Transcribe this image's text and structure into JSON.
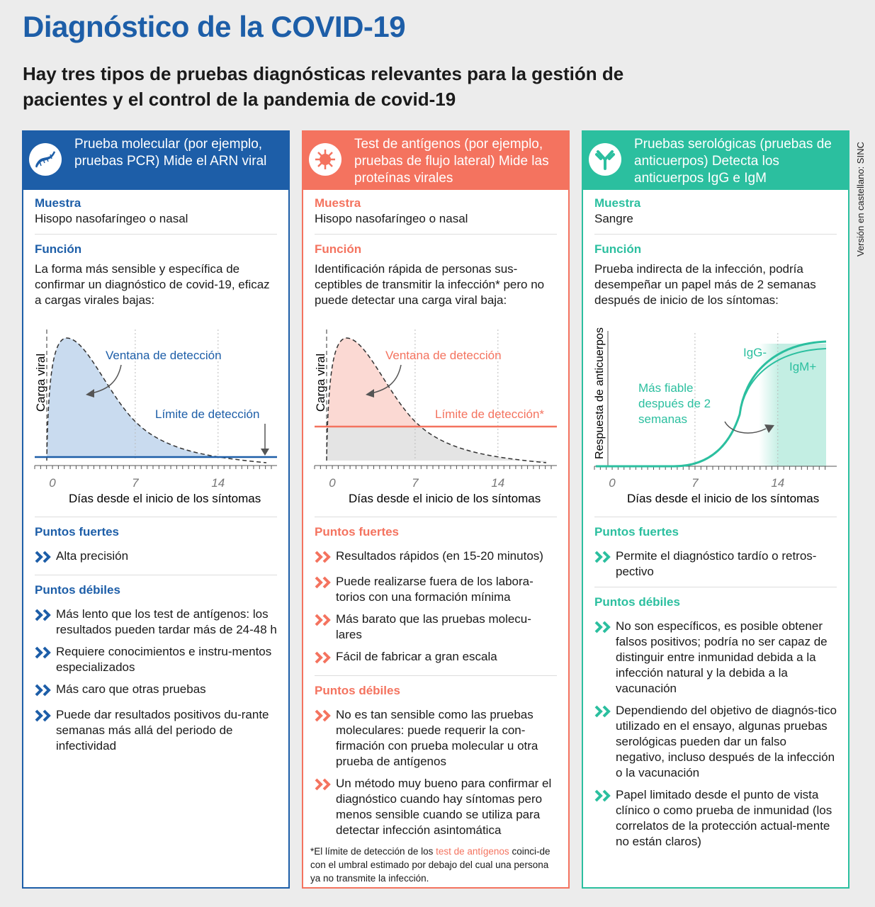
{
  "title": "Diagnóstico de la COVID-19",
  "subtitle": "Hay tres tipos de pruebas diagnósticas relevantes para la gestión de pacientes y el control de la pandemia de covid-19",
  "side_note": "Versión en castellano: SINC",
  "colors": {
    "molecular": "#1d5ea8",
    "antigenos": "#f4735f",
    "serologicas": "#2bbf9f"
  },
  "columns": [
    {
      "icon": "dna-icon",
      "header": "Prueba molecular (por ejemplo, pruebas PCR) Mide el ARN viral",
      "muestra_label": "Muestra",
      "muestra": "Hisopo nasofaríngeo o nasal",
      "funcion_label": "Función",
      "funcion": "La forma más sensible y específica de confirmar un diagnóstico de covid-19, eficaz a cargas virales bajas:",
      "chart": {
        "ylabel": "Carga viral",
        "xlabel": "Días desde el inicio de los síntomas",
        "ticks": [
          "0",
          "7",
          "14"
        ],
        "window_label": "Ventana de detección",
        "limit_label": "Límite de detección"
      },
      "fuertes_label": "Puntos fuertes",
      "fuertes": [
        "Alta precisión"
      ],
      "debiles_label": "Puntos débiles",
      "debiles": [
        "Más lento que los test de antígenos: los resultados pueden tardar más de 24-48 h",
        "Requiere conocimientos e instru-mentos especializados",
        "Más caro que otras pruebas",
        "Puede dar resultados positivos du-rante semanas más allá del periodo de infectividad"
      ]
    },
    {
      "icon": "virus-icon",
      "header": "Test de antígenos (por ejemplo, pruebas de flujo lateral) Mide las proteínas virales",
      "muestra_label": "Muestra",
      "muestra": "Hisopo nasofaríngeo o nasal",
      "funcion_label": "Función",
      "funcion": "Identificación rápida de personas sus-ceptibles de transmitir la infección* pero no puede detectar una carga viral baja:",
      "chart": {
        "ylabel": "Carga viral",
        "xlabel": "Días desde el inicio de los síntomas",
        "ticks": [
          "0",
          "7",
          "14"
        ],
        "window_label": "Ventana de detección",
        "limit_label": "Límite de detección*"
      },
      "fuertes_label": "Puntos fuertes",
      "fuertes": [
        "Resultados rápidos (en 15-20 minutos)",
        "Puede realizarse fuera de los labora-torios con una formación mínima",
        "Más barato que las pruebas molecu-lares",
        "Fácil de fabricar a gran escala"
      ],
      "debiles_label": "Puntos débiles",
      "debiles": [
        "No es tan sensible como las pruebas moleculares: puede requerir la con-firmación con prueba molecular u otra prueba de antígenos",
        "Un método muy bueno para confirmar el diagnóstico cuando hay síntomas pero menos sensible cuando se utiliza para detectar infección asintomática"
      ],
      "footnote": {
        "a": "*El límite de detección de los ",
        "b": "test de antígenos",
        "c": " coinci-de con el umbral estimado por debajo del cual una persona ya no transmite la infección."
      }
    },
    {
      "icon": "antibody-icon",
      "header": "Pruebas serológicas (pruebas de anticuerpos) Detecta los anticuerpos IgG e IgM",
      "muestra_label": "Muestra",
      "muestra": "Sangre",
      "funcion_label": "Función",
      "funcion": "Prueba indirecta de la infección, podría desempeñar un papel más de 2 semanas después de inicio de los síntomas:",
      "chart": {
        "ylabel": "Respuesta de anticuerpos",
        "xlabel": "Días desde el inicio de los síntomas",
        "ticks": [
          "0",
          "7",
          "14"
        ],
        "igg_label": "IgG-",
        "igm_label": "IgM+",
        "reliable_label": [
          "Más fiable",
          "después de 2",
          "semanas"
        ]
      },
      "fuertes_label": "Puntos fuertes",
      "fuertes": [
        "Permite el diagnóstico tardío o retros-pectivo"
      ],
      "debiles_label": "Puntos débiles",
      "debiles": [
        "No son específicos, es posible obtener falsos positivos; podría no ser capaz de distinguir entre inmunidad debida a la infección natural y la debida a la vacunación",
        "Dependiendo del objetivo de diagnós-tico utilizado en el ensayo, algunas pruebas serológicas pueden dar un falso negativo, incluso después de la infección o la vacunación",
        "Papel limitado desde el punto de vista clínico o como prueba de inmunidad (los correlatos de la protección actual-mente no están claros)"
      ]
    }
  ]
}
